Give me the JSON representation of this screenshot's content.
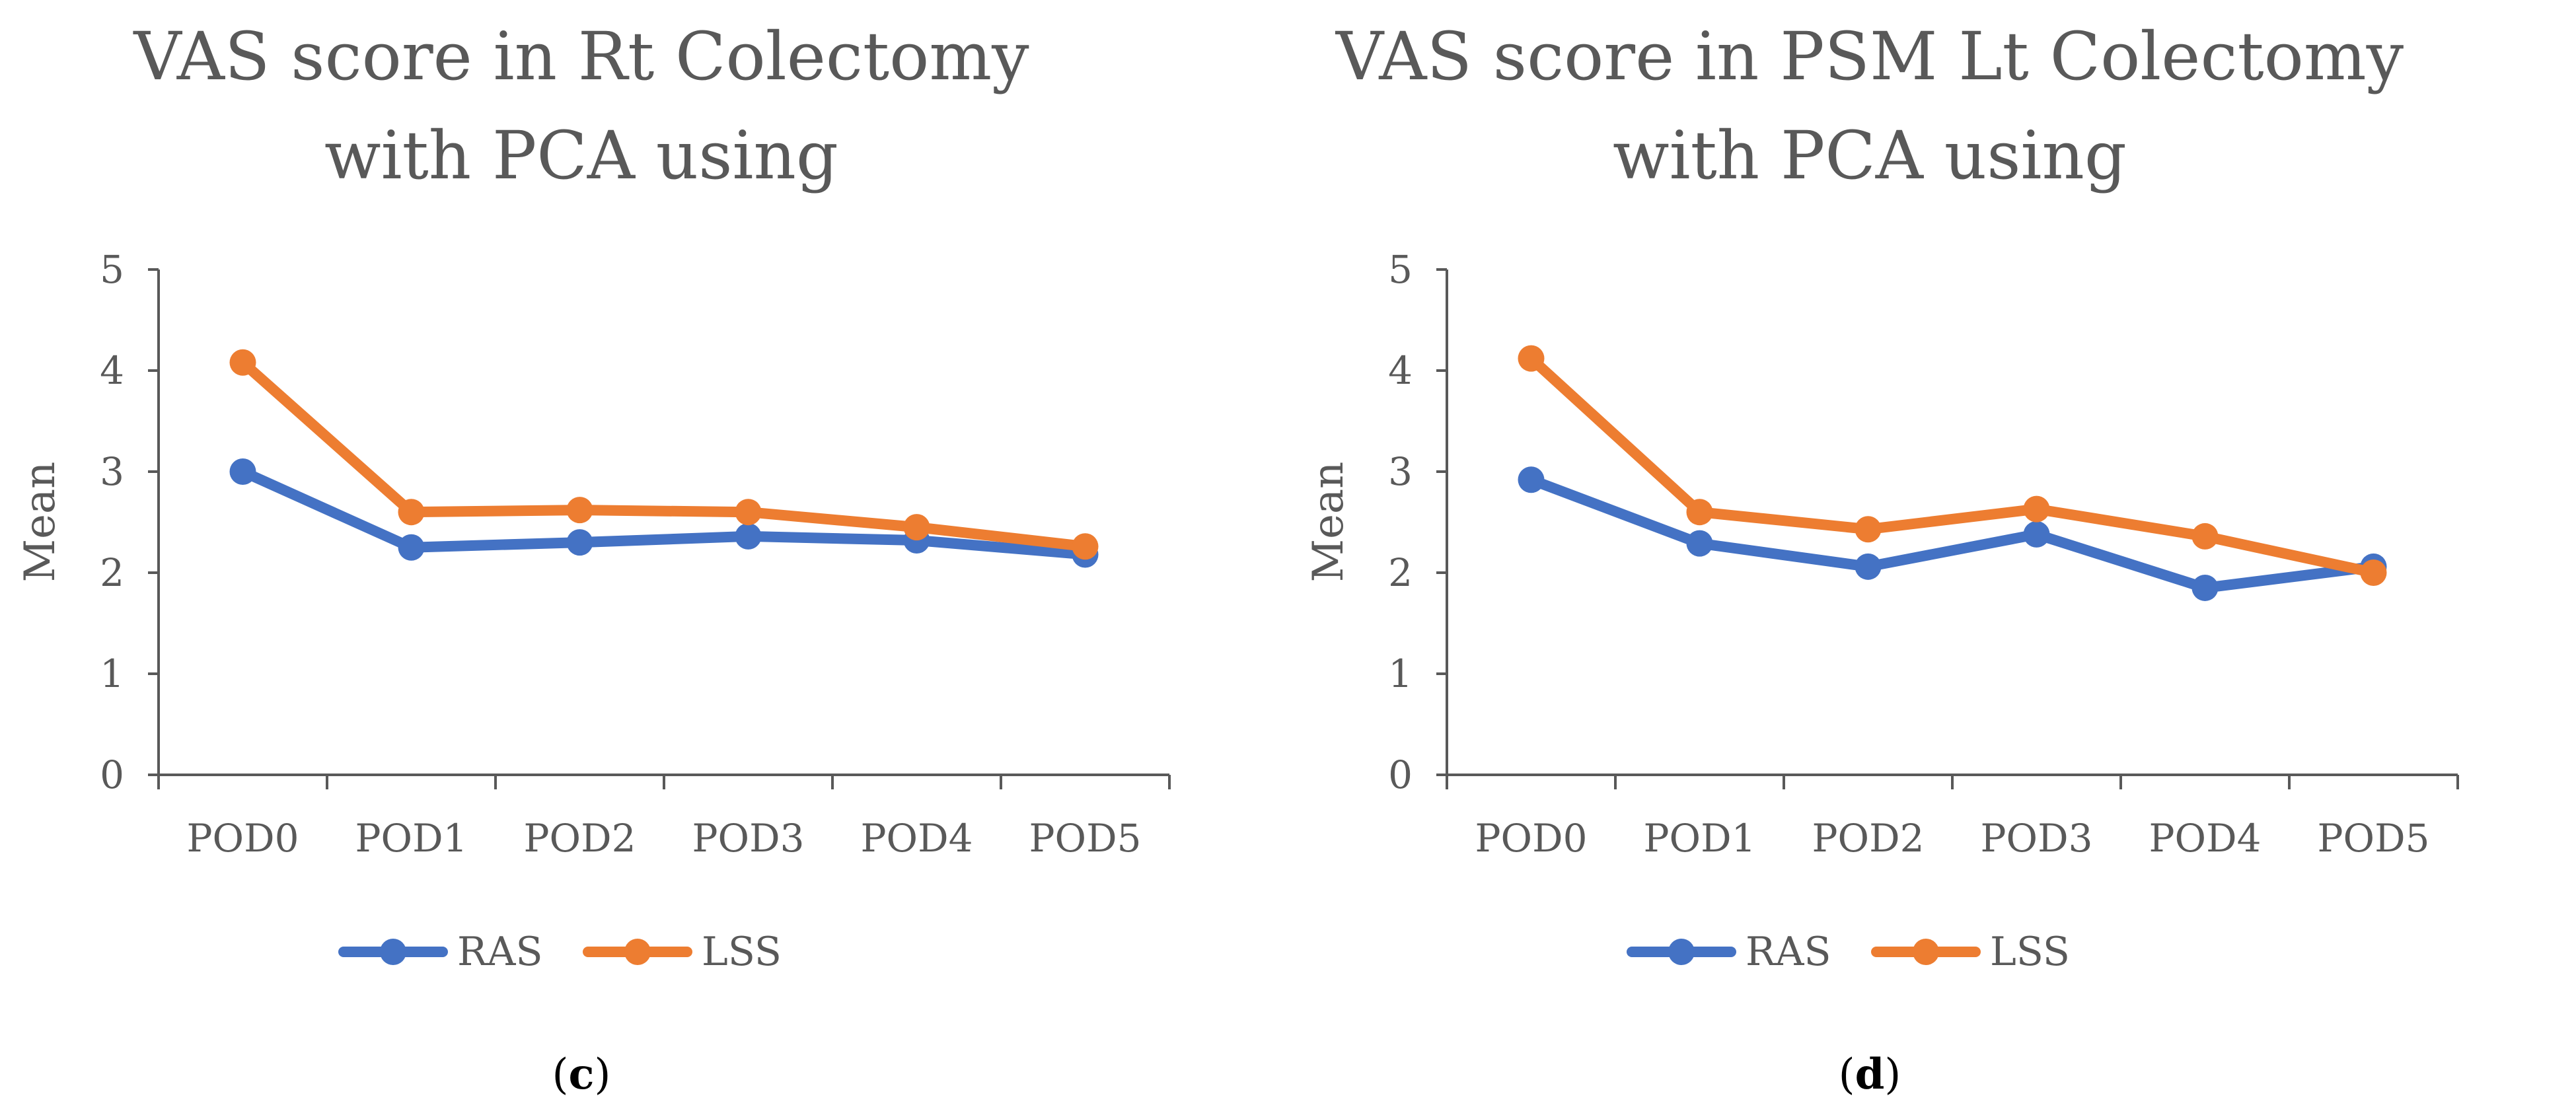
{
  "chart_data": [
    {
      "type": "line",
      "title_lines": [
        "VAS score in Rt Colectomy",
        "with PCA using"
      ],
      "xlabel": "",
      "ylabel": "Mean",
      "ylim": [
        0,
        5
      ],
      "yticks": [
        "0",
        "1",
        "2",
        "3",
        "4",
        "5"
      ],
      "categories": [
        "POD0",
        "POD1",
        "POD2",
        "POD3",
        "POD4",
        "POD5"
      ],
      "series": [
        {
          "name": "RAS",
          "color": "#4472C4",
          "values": [
            3.0,
            2.25,
            2.3,
            2.36,
            2.32,
            2.18
          ]
        },
        {
          "name": "LSS",
          "color": "#ED7D31",
          "values": [
            4.08,
            2.6,
            2.62,
            2.6,
            2.45,
            2.26
          ]
        }
      ],
      "legend_position": "bottom",
      "caption": {
        "open": "(",
        "letter": "c",
        "close": ")"
      }
    },
    {
      "type": "line",
      "title_lines": [
        "VAS score in PSM Lt Colectomy",
        "with PCA using"
      ],
      "xlabel": "",
      "ylabel": "Mean",
      "ylim": [
        0,
        5
      ],
      "yticks": [
        "0",
        "1",
        "2",
        "3",
        "4",
        "5"
      ],
      "categories": [
        "POD0",
        "POD1",
        "POD2",
        "POD3",
        "POD4",
        "POD5"
      ],
      "series": [
        {
          "name": "RAS",
          "color": "#4472C4",
          "values": [
            2.92,
            2.29,
            2.06,
            2.38,
            1.85,
            2.06
          ]
        },
        {
          "name": "LSS",
          "color": "#ED7D31",
          "values": [
            4.12,
            2.6,
            2.43,
            2.63,
            2.36,
            2.0
          ]
        }
      ],
      "legend_position": "bottom",
      "caption": {
        "open": "(",
        "letter": "d",
        "close": ")"
      }
    }
  ]
}
